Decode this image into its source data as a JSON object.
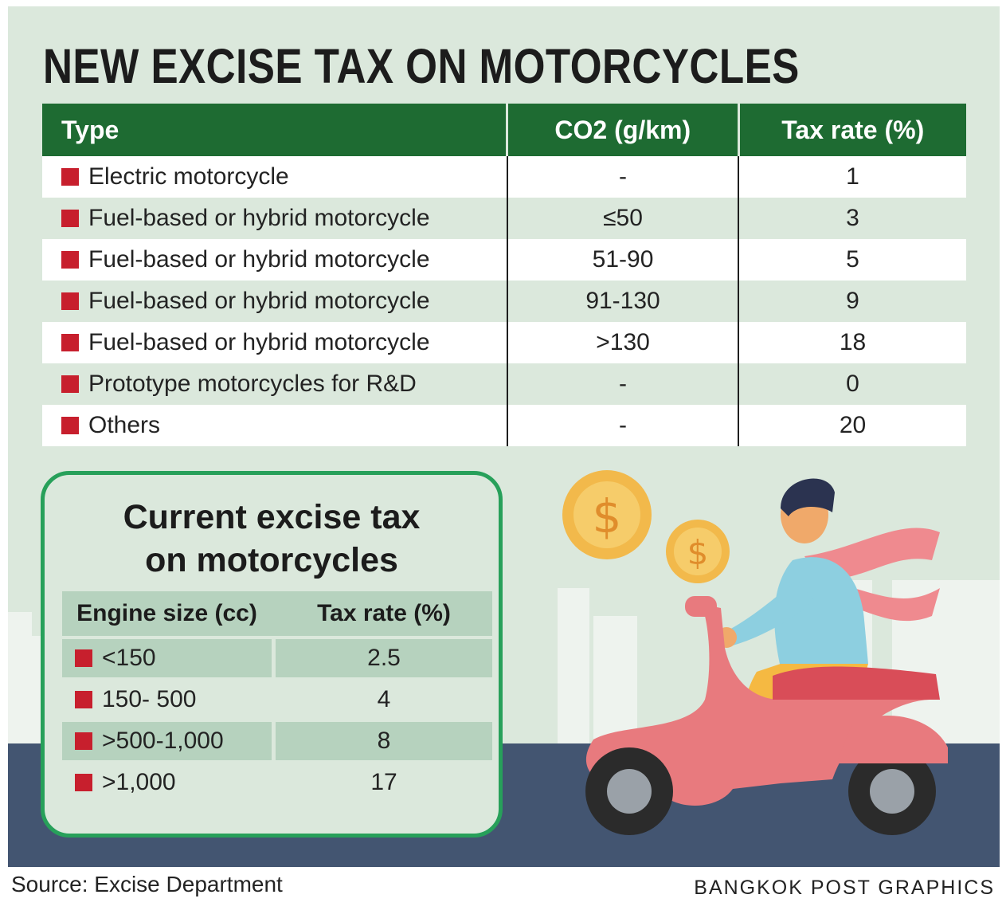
{
  "title": "NEW EXCISE TAX ON MOTORCYCLES",
  "chart_data": [
    {
      "type": "table",
      "title": "NEW EXCISE TAX ON MOTORCYCLES",
      "columns": [
        "Type",
        "CO2 (g/km)",
        "Tax rate (%)"
      ],
      "rows": [
        [
          "Electric motorcycle",
          "-",
          "1"
        ],
        [
          "Fuel-based or hybrid motorcycle",
          "≤50",
          "3"
        ],
        [
          "Fuel-based or hybrid motorcycle",
          "51-90",
          "5"
        ],
        [
          "Fuel-based or hybrid motorcycle",
          "91-130",
          "9"
        ],
        [
          "Fuel-based or hybrid motorcycle",
          ">130",
          "18"
        ],
        [
          "Prototype motorcycles for R&D",
          "-",
          "0"
        ],
        [
          "Others",
          "-",
          "20"
        ]
      ]
    },
    {
      "type": "table",
      "title_lines": [
        "Current excise tax",
        "on motorcycles"
      ],
      "columns": [
        "Engine size (cc)",
        "Tax rate (%)"
      ],
      "rows": [
        [
          "<150",
          "2.5"
        ],
        [
          "150- 500",
          "4"
        ],
        [
          ">500-1,000",
          "8"
        ],
        [
          ">1,000",
          "17"
        ]
      ]
    }
  ],
  "coin_symbol": "$",
  "source": "Source: Excise Department",
  "credit": "BANGKOK POST GRAPHICS",
  "colors": {
    "background": "#dbe8dc",
    "header_green": "#1e6b32",
    "bullet_red": "#c71f2d",
    "inset_border": "#27a05a",
    "road": "#435571"
  },
  "icons": [
    "coin-icon",
    "scooter-rider-illustration",
    "city-skyline"
  ]
}
